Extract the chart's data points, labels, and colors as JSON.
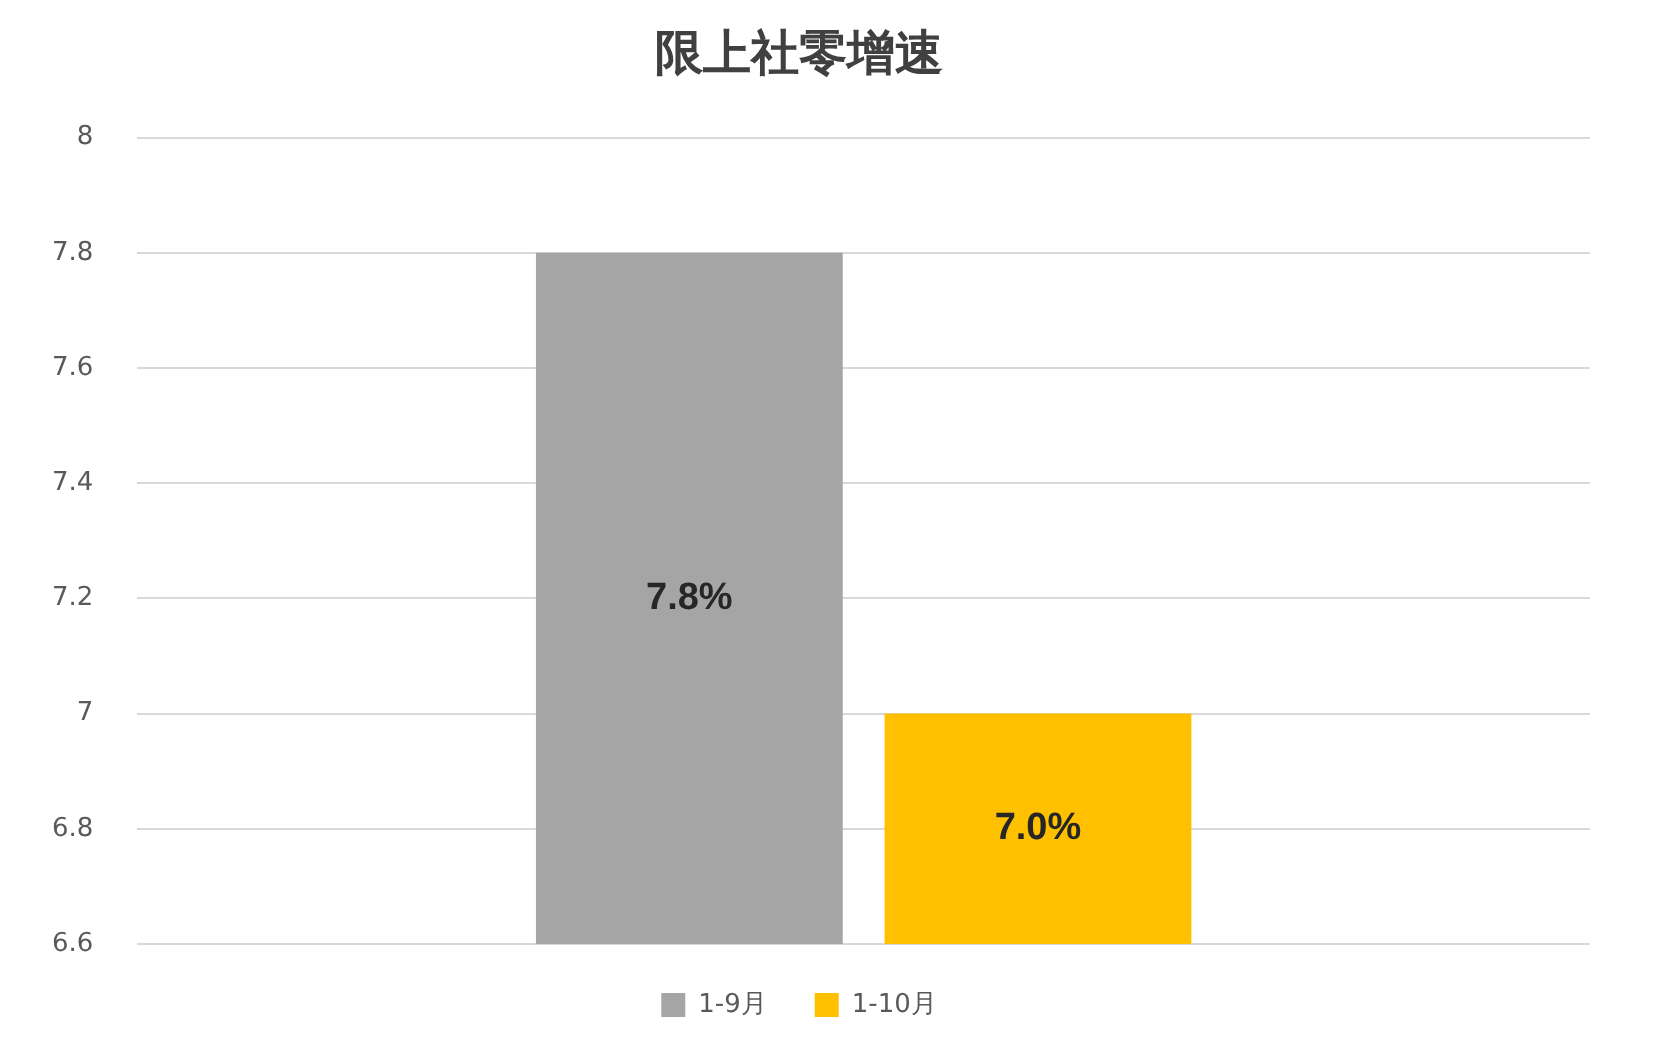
{
  "chart_data": {
    "type": "bar",
    "title": "限上社零增速",
    "categories": [
      null
    ],
    "series": [
      {
        "name": "1-9月",
        "color": "#a5a5a5",
        "values": [
          7.8
        ],
        "value_labels": [
          "7.8%"
        ]
      },
      {
        "name": "1-10月",
        "color": "#ffc000",
        "values": [
          7.0
        ],
        "value_labels": [
          "7.0%"
        ]
      }
    ],
    "ylim": [
      6.6,
      8
    ],
    "yticks": [
      6.6,
      6.8,
      7,
      7.2,
      7.4,
      7.6,
      7.8,
      8
    ],
    "grid": "y",
    "legend": "bottom",
    "tick_labels": "y"
  }
}
